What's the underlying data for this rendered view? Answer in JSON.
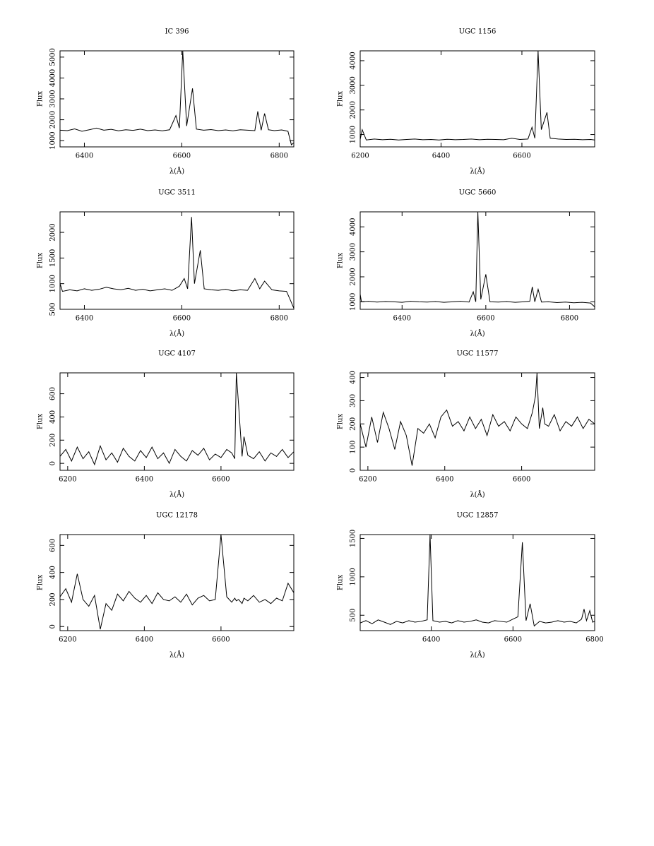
{
  "chart_data": [
    {
      "type": "line",
      "title": "IC 396",
      "xlabel": "λ(Å)",
      "ylabel": "Flux",
      "color": "#000000",
      "xlim": [
        6350,
        6830
      ],
      "ylim": [
        700,
        5300
      ],
      "xticks": [
        6400,
        6600,
        6800
      ],
      "yticks": [
        1000,
        2000,
        3000,
        4000,
        5000
      ],
      "x": [
        6350,
        6365,
        6380,
        6395,
        6410,
        6425,
        6440,
        6455,
        6470,
        6485,
        6500,
        6515,
        6530,
        6545,
        6560,
        6575,
        6588,
        6595,
        6602,
        6610,
        6622,
        6630,
        6645,
        6660,
        6675,
        6690,
        6705,
        6720,
        6735,
        6750,
        6756,
        6763,
        6770,
        6778,
        6790,
        6805,
        6818,
        6825,
        6830
      ],
      "values": [
        1500,
        1480,
        1560,
        1450,
        1520,
        1600,
        1500,
        1540,
        1470,
        1520,
        1490,
        1550,
        1480,
        1510,
        1470,
        1520,
        2200,
        1600,
        5300,
        1700,
        3500,
        1550,
        1500,
        1530,
        1480,
        1510,
        1470,
        1520,
        1500,
        1480,
        2400,
        1500,
        2300,
        1520,
        1480,
        1510,
        1450,
        800,
        900
      ]
    },
    {
      "type": "line",
      "title": "UGC 1156",
      "xlabel": "λ(Å)",
      "ylabel": "Flux",
      "color": "#000000",
      "xlim": [
        6200,
        6780
      ],
      "ylim": [
        500,
        4400
      ],
      "xticks": [
        6200,
        6400,
        6600
      ],
      "yticks": [
        1000,
        2000,
        3000,
        4000
      ],
      "x": [
        6200,
        6205,
        6215,
        6235,
        6255,
        6275,
        6295,
        6315,
        6335,
        6355,
        6375,
        6395,
        6415,
        6435,
        6455,
        6475,
        6495,
        6515,
        6535,
        6555,
        6575,
        6595,
        6615,
        6625,
        6632,
        6640,
        6648,
        6662,
        6670,
        6690,
        6710,
        6730,
        6750,
        6770,
        6780
      ],
      "values": [
        800,
        1200,
        780,
        820,
        790,
        810,
        780,
        800,
        820,
        790,
        800,
        780,
        810,
        790,
        800,
        820,
        790,
        810,
        800,
        790,
        850,
        800,
        820,
        1300,
        850,
        4400,
        1200,
        1900,
        850,
        820,
        800,
        810,
        790,
        800,
        780
      ]
    },
    {
      "type": "line",
      "title": "UGC 3511",
      "xlabel": "λ(Å)",
      "ylabel": "Flux",
      "color": "#000000",
      "xlim": [
        6350,
        6830
      ],
      "ylim": [
        500,
        2400
      ],
      "xticks": [
        6400,
        6600,
        6800
      ],
      "yticks": [
        500,
        1000,
        1500,
        2000
      ],
      "x": [
        6350,
        6355,
        6370,
        6385,
        6400,
        6415,
        6430,
        6445,
        6460,
        6475,
        6490,
        6505,
        6520,
        6535,
        6550,
        6565,
        6580,
        6595,
        6605,
        6612,
        6620,
        6626,
        6638,
        6646,
        6660,
        6675,
        6690,
        6705,
        6720,
        6735,
        6750,
        6760,
        6770,
        6785,
        6800,
        6815,
        6822,
        6830
      ],
      "values": [
        1000,
        850,
        880,
        860,
        900,
        870,
        890,
        930,
        900,
        880,
        910,
        870,
        890,
        860,
        880,
        900,
        870,
        950,
        1100,
        900,
        2300,
        1000,
        1650,
        900,
        880,
        870,
        890,
        860,
        880,
        870,
        1100,
        900,
        1050,
        880,
        860,
        850,
        700,
        520
      ]
    },
    {
      "type": "line",
      "title": "UGC 5660",
      "xlabel": "λ(Å)",
      "ylabel": "Flux",
      "color": "#000000",
      "xlim": [
        6300,
        6860
      ],
      "ylim": [
        700,
        4600
      ],
      "xticks": [
        6400,
        6600,
        6800
      ],
      "yticks": [
        1000,
        2000,
        3000,
        4000
      ],
      "x": [
        6300,
        6303,
        6320,
        6340,
        6360,
        6380,
        6400,
        6420,
        6440,
        6460,
        6480,
        6500,
        6520,
        6540,
        6560,
        6570,
        6576,
        6581,
        6588,
        6600,
        6610,
        6630,
        6650,
        6670,
        6690,
        6705,
        6711,
        6717,
        6725,
        6733,
        6750,
        6770,
        6790,
        6810,
        6830,
        6850,
        6860
      ],
      "values": [
        1300,
        1000,
        1020,
        990,
        1010,
        1000,
        980,
        1020,
        1000,
        990,
        1010,
        980,
        1000,
        1020,
        990,
        1400,
        1000,
        4600,
        1100,
        2100,
        1000,
        990,
        1010,
        980,
        1000,
        1020,
        1600,
        1000,
        1500,
        990,
        1000,
        970,
        990,
        960,
        980,
        950,
        800
      ]
    },
    {
      "type": "line",
      "title": "UGC 4107",
      "xlabel": "λ(Å)",
      "ylabel": "Flux",
      "color": "#000000",
      "xlim": [
        6180,
        6790
      ],
      "ylim": [
        -60,
        780
      ],
      "xticks": [
        6200,
        6400,
        6600
      ],
      "yticks": [
        0,
        200,
        400,
        600
      ],
      "x": [
        6180,
        6195,
        6210,
        6225,
        6240,
        6255,
        6270,
        6285,
        6300,
        6315,
        6330,
        6345,
        6360,
        6375,
        6390,
        6405,
        6420,
        6435,
        6450,
        6465,
        6480,
        6495,
        6510,
        6525,
        6540,
        6555,
        6570,
        6585,
        6600,
        6615,
        6628,
        6636,
        6640,
        6646,
        6655,
        6660,
        6670,
        6685,
        6700,
        6715,
        6730,
        6745,
        6760,
        6775,
        6790
      ],
      "values": [
        60,
        120,
        20,
        140,
        40,
        100,
        -10,
        150,
        30,
        90,
        10,
        130,
        60,
        20,
        110,
        50,
        140,
        40,
        90,
        0,
        120,
        60,
        20,
        110,
        70,
        130,
        30,
        80,
        50,
        120,
        90,
        40,
        780,
        500,
        60,
        230,
        70,
        40,
        100,
        20,
        90,
        60,
        120,
        50,
        100
      ]
    },
    {
      "type": "line",
      "title": "UGC 11577",
      "xlabel": "λ(Å)",
      "ylabel": "Flux",
      "color": "#000000",
      "xlim": [
        6180,
        6790
      ],
      "ylim": [
        0,
        420
      ],
      "xticks": [
        6200,
        6400,
        6600
      ],
      "yticks": [
        0,
        100,
        200,
        300,
        400
      ],
      "x": [
        6180,
        6195,
        6210,
        6225,
        6240,
        6255,
        6270,
        6285,
        6300,
        6315,
        6330,
        6345,
        6360,
        6375,
        6390,
        6405,
        6420,
        6435,
        6450,
        6465,
        6480,
        6495,
        6510,
        6525,
        6540,
        6555,
        6570,
        6585,
        6600,
        6615,
        6628,
        6636,
        6640,
        6646,
        6655,
        6660,
        6670,
        6685,
        6700,
        6715,
        6730,
        6745,
        6760,
        6775,
        6790
      ],
      "values": [
        200,
        100,
        230,
        120,
        250,
        180,
        90,
        210,
        150,
        20,
        180,
        160,
        200,
        140,
        230,
        260,
        190,
        210,
        170,
        230,
        180,
        220,
        150,
        240,
        190,
        210,
        170,
        230,
        200,
        180,
        250,
        320,
        420,
        180,
        270,
        200,
        190,
        240,
        170,
        210,
        190,
        230,
        180,
        220,
        200
      ]
    },
    {
      "type": "line",
      "title": "UGC 12178",
      "xlabel": "λ(Å)",
      "ylabel": "Flux",
      "color": "#000000",
      "xlim": [
        6180,
        6790
      ],
      "ylim": [
        -30,
        680
      ],
      "xticks": [
        6200,
        6400,
        6600
      ],
      "yticks": [
        0,
        200,
        400,
        600
      ],
      "x": [
        6180,
        6195,
        6210,
        6225,
        6240,
        6255,
        6270,
        6285,
        6300,
        6315,
        6330,
        6345,
        6360,
        6375,
        6390,
        6405,
        6420,
        6435,
        6450,
        6465,
        6480,
        6495,
        6510,
        6525,
        6540,
        6555,
        6570,
        6585,
        6600,
        6615,
        6628,
        6636,
        6640,
        6646,
        6655,
        6660,
        6670,
        6685,
        6700,
        6715,
        6730,
        6745,
        6760,
        6775,
        6790
      ],
      "values": [
        220,
        280,
        180,
        390,
        200,
        150,
        230,
        -20,
        170,
        120,
        240,
        190,
        260,
        210,
        180,
        230,
        170,
        250,
        200,
        190,
        220,
        180,
        240,
        160,
        210,
        230,
        190,
        200,
        680,
        220,
        180,
        210,
        190,
        200,
        170,
        210,
        190,
        230,
        180,
        200,
        170,
        210,
        190,
        320,
        250
      ]
    },
    {
      "type": "line",
      "title": "UGC 12857",
      "xlabel": "λ(Å)",
      "ylabel": "Flux",
      "color": "#000000",
      "xlim": [
        6226,
        6800
      ],
      "ylim": [
        300,
        1550
      ],
      "xticks": [
        6400,
        6600,
        6800
      ],
      "yticks": [
        500,
        1000,
        1500
      ],
      "x": [
        6226,
        6240,
        6255,
        6270,
        6285,
        6300,
        6315,
        6330,
        6345,
        6360,
        6375,
        6390,
        6397,
        6404,
        6420,
        6435,
        6450,
        6465,
        6480,
        6495,
        6510,
        6525,
        6540,
        6555,
        6570,
        6585,
        6600,
        6612,
        6623,
        6632,
        6642,
        6652,
        6665,
        6680,
        6695,
        6710,
        6725,
        6740,
        6755,
        6768,
        6774,
        6780,
        6788,
        6795,
        6800
      ],
      "values": [
        400,
        430,
        390,
        440,
        410,
        380,
        420,
        400,
        430,
        410,
        420,
        440,
        1550,
        430,
        410,
        420,
        400,
        430,
        410,
        420,
        440,
        410,
        400,
        430,
        420,
        410,
        450,
        480,
        1450,
        430,
        650,
        360,
        420,
        400,
        410,
        430,
        410,
        420,
        400,
        450,
        580,
        430,
        560,
        410,
        420
      ]
    }
  ]
}
